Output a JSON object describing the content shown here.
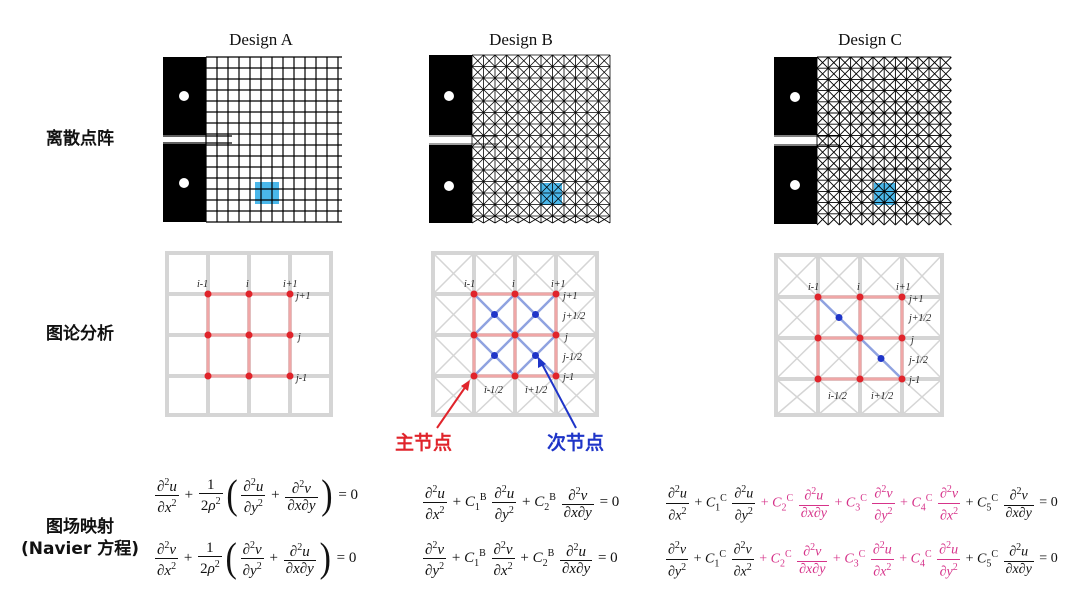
{
  "designs": [
    {
      "title": "Design A"
    },
    {
      "title": "Design B"
    },
    {
      "title": "Design C"
    }
  ],
  "rows": {
    "discrete": "离散点阵",
    "graph": "图论分析",
    "mapping_line1": "图场映射",
    "mapping_line2": "(Navier 方程)"
  },
  "node_labels": {
    "primary": "主节点",
    "secondary": "次节点"
  },
  "graph_labels": {
    "i_minus": "i-1",
    "i": "i",
    "i_plus": "i+1",
    "j_plus": "j+1",
    "j": "j",
    "j_minus": "j-1",
    "j_plus_half": "j+1/2",
    "j_minus_half": "j-1/2",
    "i_minus_half": "i-1/2",
    "i_plus_half": "i+1/2"
  },
  "equations": {
    "rhs": "= 0",
    "coef_B": "B",
    "coef_C": "C"
  },
  "colors": {
    "primary_node": "#e0242b",
    "secondary_node": "#1f35c8",
    "highlight_cell": "#4ab7ea",
    "pink_term": "#d6338a",
    "edge_red": "#f0a7a7",
    "edge_blue": "#8fa2e0"
  }
}
